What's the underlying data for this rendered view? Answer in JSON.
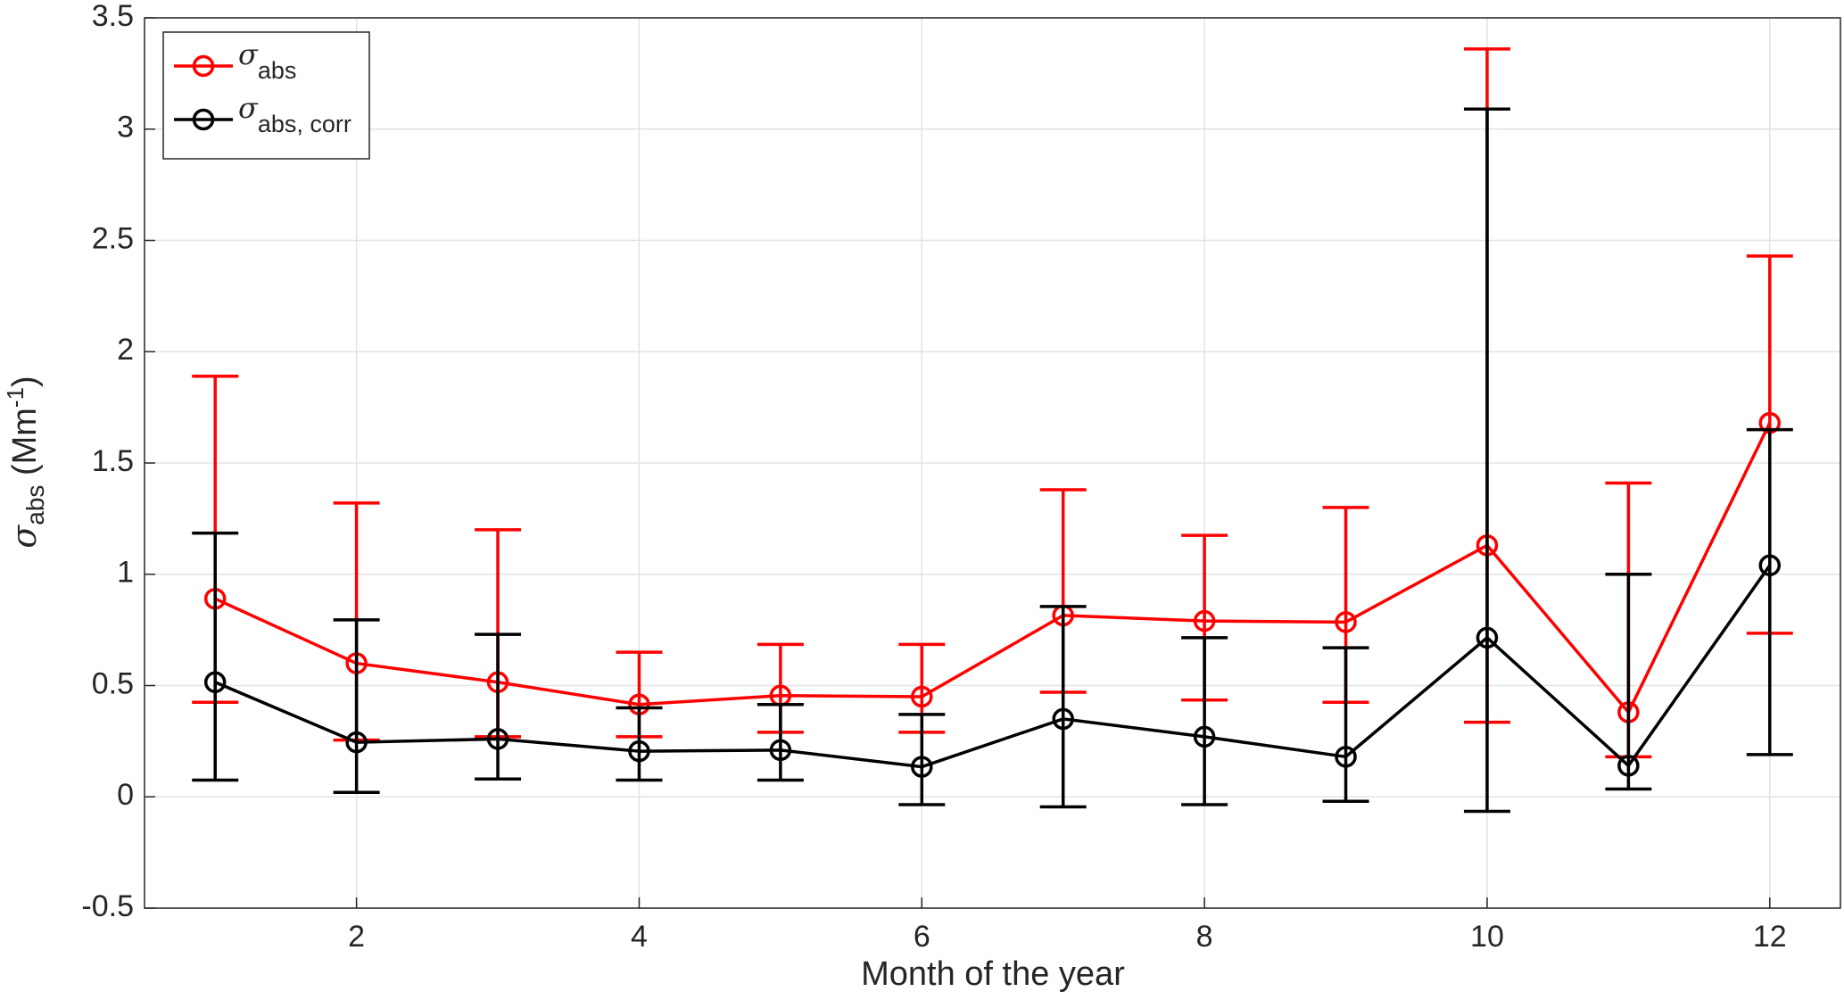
{
  "chart_data": {
    "type": "errorbar-line",
    "x_label": "Month of the year",
    "y_label": {
      "symbol": "σ",
      "subscript": "abs",
      "text": " (Mm",
      "superscript": "-1",
      "close": ")"
    },
    "x": [
      1,
      2,
      3,
      4,
      5,
      6,
      7,
      8,
      9,
      10,
      11,
      12
    ],
    "xlim": [
      0.5,
      12.5
    ],
    "xticks": [
      2,
      4,
      6,
      8,
      10,
      12
    ],
    "ylim": [
      -0.5,
      3.5
    ],
    "yticks": [
      -0.5,
      0,
      0.5,
      1,
      1.5,
      2,
      2.5,
      3,
      3.5
    ],
    "grid": true,
    "legend": "upper left",
    "series": [
      {
        "name": "σ",
        "subscript": "abs",
        "color": "#ff0000",
        "values": [
          0.89,
          0.6,
          0.515,
          0.415,
          0.455,
          0.45,
          0.815,
          0.79,
          0.785,
          1.13,
          0.38,
          1.68
        ],
        "low": [
          0.425,
          0.255,
          0.27,
          0.27,
          0.29,
          0.29,
          0.47,
          0.435,
          0.425,
          0.335,
          0.18,
          0.735
        ],
        "high": [
          1.89,
          1.32,
          1.2,
          0.65,
          0.685,
          0.685,
          1.38,
          1.175,
          1.3,
          3.36,
          1.41,
          2.43
        ]
      },
      {
        "name": "σ",
        "subscript": "abs, corr",
        "color": "#000000",
        "values": [
          0.515,
          0.245,
          0.26,
          0.205,
          0.21,
          0.135,
          0.35,
          0.27,
          0.18,
          0.715,
          0.14,
          1.04
        ],
        "low": [
          0.075,
          0.02,
          0.08,
          0.075,
          0.075,
          -0.035,
          -0.045,
          -0.035,
          -0.02,
          -0.065,
          0.035,
          0.19
        ],
        "high": [
          1.185,
          0.795,
          0.73,
          0.4,
          0.415,
          0.37,
          0.855,
          0.715,
          0.67,
          3.09,
          1.0,
          1.65
        ]
      }
    ]
  }
}
